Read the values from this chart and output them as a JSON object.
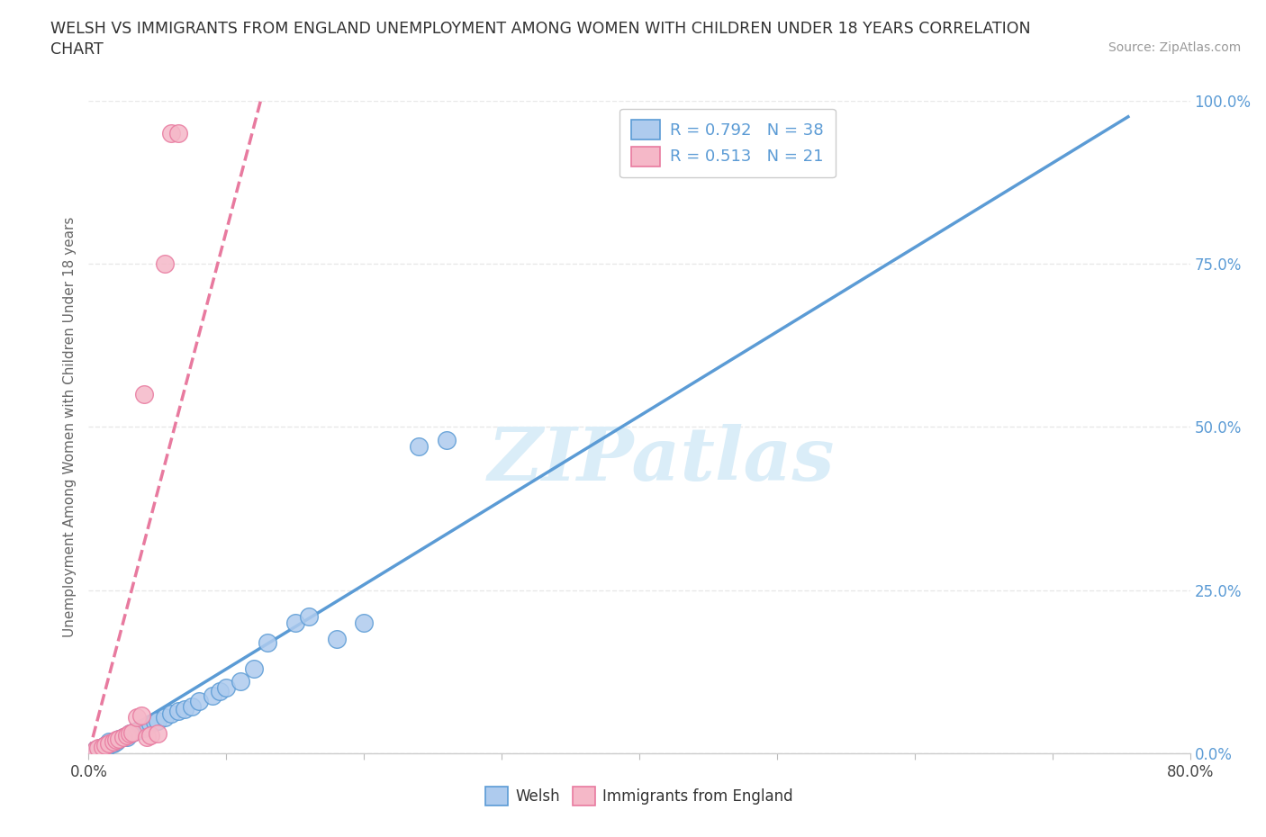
{
  "title_line1": "WELSH VS IMMIGRANTS FROM ENGLAND UNEMPLOYMENT AMONG WOMEN WITH CHILDREN UNDER 18 YEARS CORRELATION",
  "title_line2": "CHART",
  "source_text": "Source: ZipAtlas.com",
  "ylabel": "Unemployment Among Women with Children Under 18 years",
  "xlim": [
    0.0,
    0.8
  ],
  "ylim": [
    0.0,
    1.0
  ],
  "xticks": [
    0.0,
    0.1,
    0.2,
    0.3,
    0.4,
    0.5,
    0.6,
    0.7,
    0.8
  ],
  "yticks": [
    0.0,
    0.25,
    0.5,
    0.75,
    1.0
  ],
  "ytick_labels": [
    "0.0%",
    "25.0%",
    "50.0%",
    "75.0%",
    "100.0%"
  ],
  "welsh_color": "#aecbee",
  "immigrants_color": "#f5b8c8",
  "welsh_edge_color": "#5b9bd5",
  "immigrants_edge_color": "#e87a9f",
  "welsh_line_color": "#5b9bd5",
  "immigrants_line_color": "#e87a9f",
  "tick_label_color": "#5b9bd5",
  "R_welsh": 0.792,
  "N_welsh": 38,
  "R_immigrants": 0.513,
  "N_immigrants": 21,
  "watermark": "ZIPatlas",
  "watermark_color": "#daedf8",
  "grid_color": "#e8e8e8",
  "grid_style": "--",
  "welsh_points_x": [
    0.005,
    0.008,
    0.01,
    0.012,
    0.015,
    0.015,
    0.018,
    0.02,
    0.022,
    0.025,
    0.028,
    0.03,
    0.032,
    0.035,
    0.038,
    0.04,
    0.042,
    0.045,
    0.048,
    0.05,
    0.055,
    0.06,
    0.065,
    0.07,
    0.075,
    0.08,
    0.09,
    0.095,
    0.1,
    0.11,
    0.12,
    0.13,
    0.15,
    0.16,
    0.18,
    0.2,
    0.24,
    0.26
  ],
  "welsh_points_y": [
    0.005,
    0.008,
    0.01,
    0.012,
    0.012,
    0.018,
    0.015,
    0.018,
    0.022,
    0.025,
    0.025,
    0.03,
    0.032,
    0.035,
    0.038,
    0.038,
    0.042,
    0.045,
    0.048,
    0.05,
    0.055,
    0.06,
    0.065,
    0.068,
    0.072,
    0.08,
    0.088,
    0.095,
    0.1,
    0.11,
    0.13,
    0.17,
    0.2,
    0.21,
    0.175,
    0.2,
    0.47,
    0.48
  ],
  "immigrants_points_x": [
    0.005,
    0.007,
    0.01,
    0.012,
    0.015,
    0.018,
    0.02,
    0.022,
    0.025,
    0.028,
    0.03,
    0.032,
    0.035,
    0.038,
    0.04,
    0.042,
    0.045,
    0.05,
    0.055,
    0.06,
    0.065
  ],
  "immigrants_points_y": [
    0.005,
    0.008,
    0.01,
    0.012,
    0.015,
    0.018,
    0.02,
    0.022,
    0.025,
    0.027,
    0.03,
    0.032,
    0.055,
    0.058,
    0.55,
    0.025,
    0.028,
    0.03,
    0.75,
    0.95,
    0.95
  ],
  "welsh_line_x": [
    0.0,
    0.755
  ],
  "welsh_line_y": [
    0.0,
    0.975
  ],
  "immigrants_line_x": [
    0.0,
    0.125
  ],
  "immigrants_line_y": [
    0.0,
    1.0
  ]
}
